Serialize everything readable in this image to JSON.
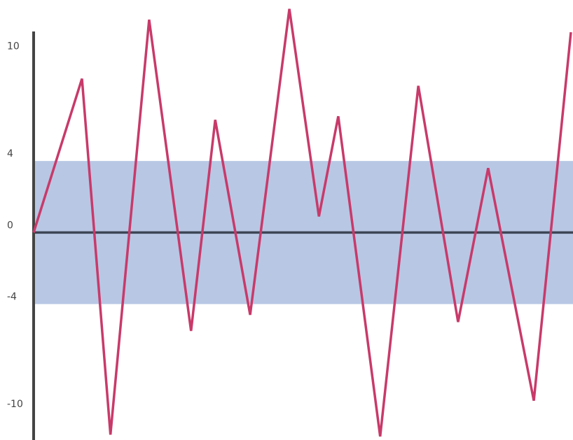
{
  "chart_data": {
    "type": "line",
    "x": [
      0,
      9,
      14.3,
      21.5,
      29.3,
      33.8,
      40.3,
      47.6,
      53.1,
      56.7,
      64.5,
      71.6,
      79,
      84.6,
      93.1,
      100
    ],
    "series": [
      {
        "color": "#c83a6a",
        "values": [
          0,
          8.6,
          -11.3,
          11.9,
          -5.5,
          6.3,
          -4.6,
          12.5,
          0.9,
          6.5,
          -11.4,
          8.2,
          -5,
          3.6,
          -9.4,
          11.2
        ]
      }
    ],
    "xlim": [
      0,
      100
    ],
    "ylim": [
      -11.6,
      13
    ],
    "yticks": [
      10,
      4,
      0,
      -4,
      -10
    ],
    "band": [
      -4,
      4
    ],
    "band_color": "#b8c7e4",
    "grid": false
  }
}
